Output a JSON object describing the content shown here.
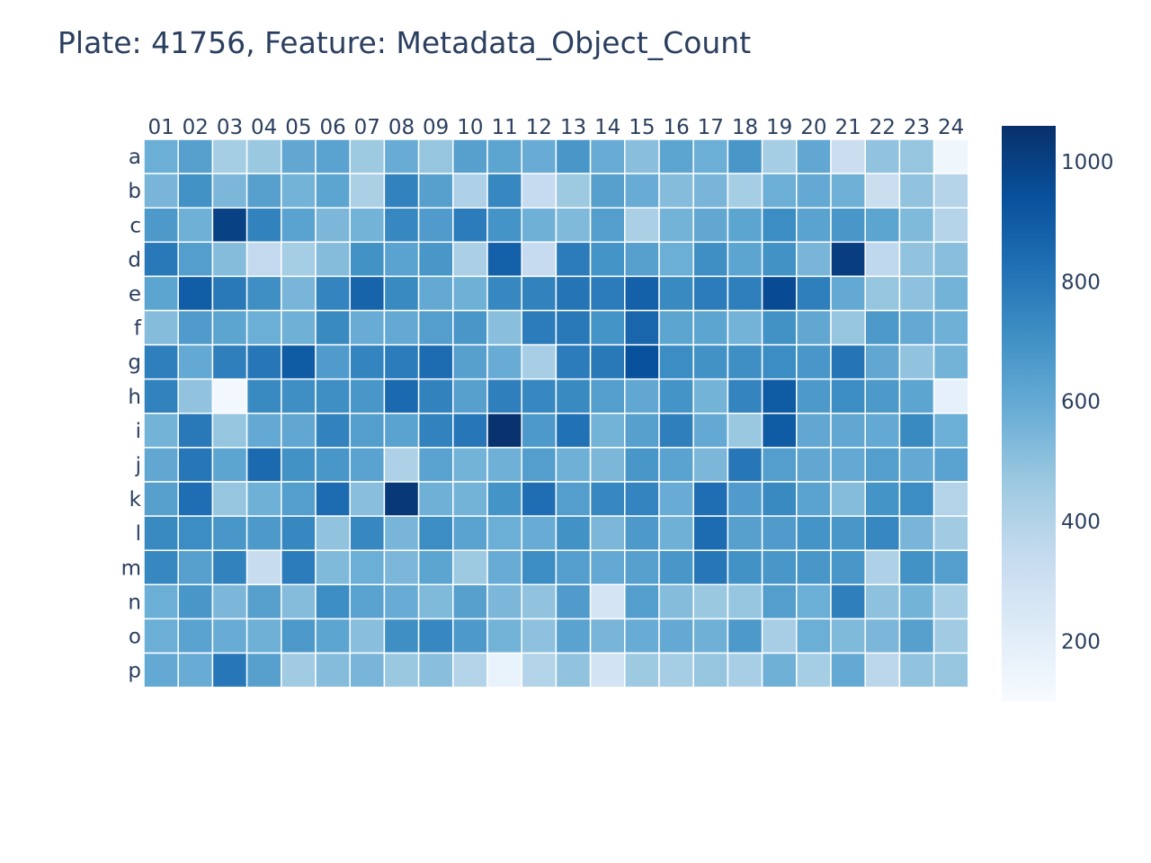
{
  "title": "Plate: 41756, Feature: Metadata_Object_Count",
  "chart_data": {
    "type": "heatmap",
    "title": "Plate: 41756, Feature: Metadata_Object_Count",
    "x_categories": [
      "01",
      "02",
      "03",
      "04",
      "05",
      "06",
      "07",
      "08",
      "09",
      "10",
      "11",
      "12",
      "13",
      "14",
      "15",
      "16",
      "17",
      "18",
      "19",
      "20",
      "21",
      "22",
      "23",
      "24"
    ],
    "y_categories": [
      "a",
      "b",
      "c",
      "d",
      "e",
      "f",
      "g",
      "h",
      "i",
      "j",
      "k",
      "l",
      "m",
      "n",
      "o",
      "p"
    ],
    "values": [
      [
        580,
        640,
        440,
        470,
        610,
        630,
        460,
        590,
        480,
        640,
        620,
        590,
        680,
        590,
        510,
        620,
        580,
        680,
        440,
        610,
        320,
        490,
        480,
        140
      ],
      [
        550,
        700,
        540,
        640,
        560,
        620,
        420,
        760,
        640,
        410,
        740,
        340,
        460,
        640,
        590,
        520,
        550,
        440,
        580,
        600,
        570,
        320,
        490,
        390
      ],
      [
        670,
        570,
        1000,
        760,
        630,
        540,
        560,
        740,
        660,
        780,
        690,
        570,
        530,
        650,
        420,
        560,
        610,
        620,
        720,
        630,
        680,
        620,
        530,
        390
      ],
      [
        790,
        650,
        520,
        350,
        440,
        520,
        700,
        630,
        680,
        420,
        880,
        340,
        780,
        690,
        640,
        580,
        710,
        620,
        700,
        550,
        1010,
        360,
        490,
        510
      ],
      [
        620,
        890,
        790,
        710,
        550,
        750,
        870,
        730,
        600,
        570,
        740,
        760,
        810,
        780,
        880,
        730,
        780,
        770,
        960,
        770,
        600,
        480,
        500,
        560
      ],
      [
        520,
        660,
        620,
        580,
        570,
        730,
        590,
        600,
        650,
        680,
        510,
        780,
        790,
        690,
        860,
        620,
        620,
        560,
        700,
        610,
        480,
        670,
        600,
        570
      ],
      [
        770,
        600,
        770,
        800,
        900,
        660,
        750,
        780,
        840,
        640,
        590,
        430,
        780,
        790,
        940,
        720,
        700,
        710,
        720,
        680,
        810,
        610,
        490,
        560
      ],
      [
        760,
        490,
        120,
        730,
        710,
        710,
        680,
        850,
        760,
        640,
        770,
        740,
        730,
        650,
        610,
        690,
        560,
        750,
        900,
        670,
        720,
        670,
        620,
        180
      ],
      [
        560,
        790,
        480,
        600,
        610,
        760,
        650,
        630,
        760,
        800,
        1050,
        670,
        820,
        560,
        640,
        770,
        600,
        470,
        900,
        610,
        610,
        600,
        730,
        580
      ],
      [
        610,
        800,
        620,
        850,
        700,
        680,
        630,
        410,
        630,
        560,
        570,
        650,
        570,
        540,
        680,
        630,
        540,
        800,
        650,
        610,
        600,
        650,
        600,
        630
      ],
      [
        640,
        830,
        480,
        570,
        650,
        840,
        510,
        1030,
        570,
        560,
        690,
        830,
        650,
        740,
        750,
        590,
        830,
        660,
        730,
        630,
        520,
        690,
        720,
        400
      ],
      [
        730,
        720,
        680,
        670,
        740,
        490,
        740,
        550,
        720,
        630,
        580,
        590,
        700,
        540,
        670,
        570,
        840,
        640,
        660,
        690,
        680,
        740,
        550,
        450
      ],
      [
        740,
        640,
        760,
        330,
        780,
        530,
        580,
        540,
        620,
        460,
        590,
        720,
        650,
        600,
        640,
        680,
        800,
        700,
        680,
        680,
        680,
        410,
        700,
        650
      ],
      [
        580,
        680,
        540,
        640,
        520,
        720,
        630,
        590,
        530,
        640,
        540,
        490,
        660,
        270,
        650,
        520,
        470,
        480,
        650,
        580,
        770,
        500,
        560,
        440
      ],
      [
        580,
        630,
        590,
        570,
        670,
        620,
        510,
        710,
        740,
        670,
        560,
        500,
        630,
        550,
        590,
        600,
        570,
        670,
        430,
        580,
        530,
        540,
        640,
        450
      ],
      [
        600,
        590,
        800,
        640,
        450,
        520,
        550,
        470,
        510,
        400,
        170,
        400,
        490,
        280,
        460,
        440,
        480,
        430,
        570,
        440,
        600,
        370,
        490,
        480
      ]
    ],
    "colorscale": "Blues",
    "zmin": 100,
    "zmax": 1060,
    "colorbar_ticks": [
      200,
      400,
      600,
      800,
      1000
    ],
    "x_axis_position": "top",
    "grid": false
  }
}
